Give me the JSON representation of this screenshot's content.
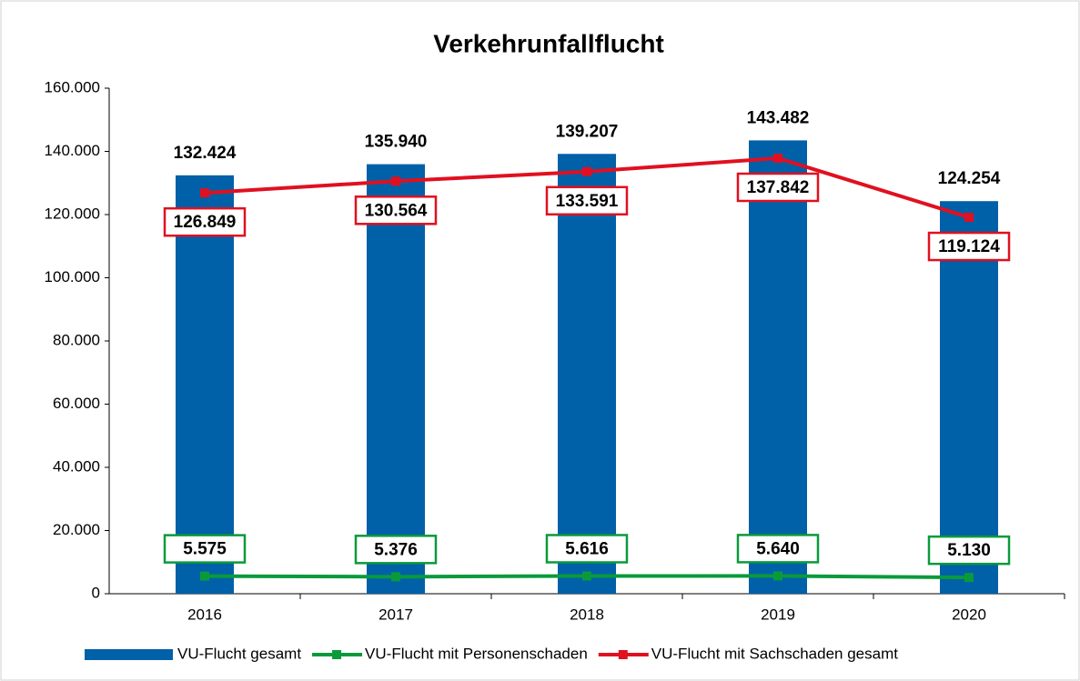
{
  "chart_data": {
    "type": "bar",
    "title": "Verkehrunfallflucht",
    "categories": [
      "2016",
      "2017",
      "2018",
      "2019",
      "2020"
    ],
    "ylim": [
      0,
      160000
    ],
    "yticks": [
      0,
      {
        "value": 20000,
        "label": "20.000"
      },
      {
        "value": 40000,
        "label": "40.000"
      },
      {
        "value": 60000,
        "label": "60.000"
      },
      {
        "value": 80000,
        "label": "80.000"
      },
      {
        "value": 100000,
        "label": "100.000"
      },
      {
        "value": 120000,
        "label": "120.000"
      },
      {
        "value": 140000,
        "label": "140.000"
      },
      {
        "value": 160000,
        "label": "160.000"
      }
    ],
    "legend": "bottom",
    "series": [
      {
        "name": "VU-Flucht gesamt",
        "type": "bar",
        "color": "#0060a8",
        "values": [
          132424,
          135940,
          139207,
          143482,
          124254
        ],
        "value_labels": [
          "132.424",
          "135.940",
          "139.207",
          "143.482",
          "124.254"
        ]
      },
      {
        "name": "VU-Flucht mit Personenschaden",
        "type": "line",
        "color": "#0a9a3c",
        "values": [
          5575,
          5376,
          5616,
          5640,
          5130
        ],
        "value_labels": [
          "5.575",
          "5.376",
          "5.616",
          "5.640",
          "5.130"
        ]
      },
      {
        "name": "VU-Flucht mit Sachschaden gesamt",
        "type": "line",
        "color": "#e01020",
        "values": [
          126849,
          130564,
          133591,
          137842,
          119124
        ],
        "value_labels": [
          "126.849",
          "130.564",
          "133.591",
          "137.842",
          "119.124"
        ]
      }
    ]
  }
}
